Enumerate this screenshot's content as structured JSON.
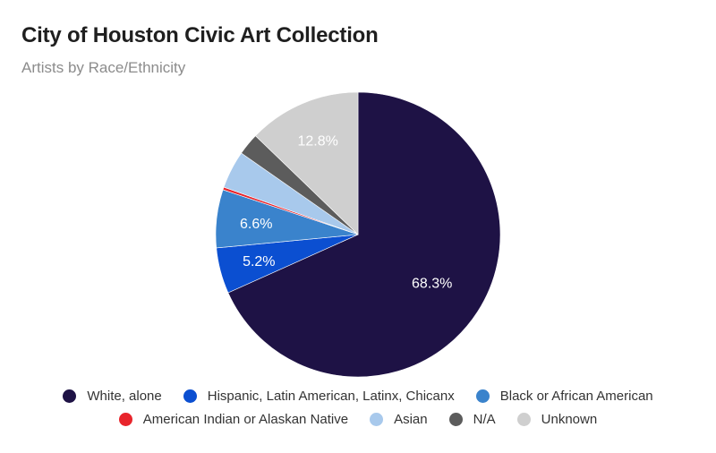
{
  "chart_data": {
    "type": "pie",
    "title": "City of Houston Civic Art Collection",
    "subtitle": "Artists by Race/Ethnicity",
    "slices": [
      {
        "label": "White, alone",
        "value": 68.3,
        "color": "#1e1245",
        "show_label": "68.3%"
      },
      {
        "label": "Hispanic, Latin American, Latinx, Chicanx",
        "value": 5.2,
        "color": "#0b4fd1",
        "show_label": "5.2%"
      },
      {
        "label": "Black or African American",
        "value": 6.6,
        "color": "#3a83cc",
        "show_label": "6.6%"
      },
      {
        "label": "American Indian or Alaskan Native",
        "value": 0.3,
        "color": "#e8242b",
        "show_label": ""
      },
      {
        "label": "Asian",
        "value": 4.3,
        "color": "#a8c9ec",
        "show_label": ""
      },
      {
        "label": "N/A",
        "value": 2.5,
        "color": "#5c5c5c",
        "show_label": ""
      },
      {
        "label": "Unknown",
        "value": 12.8,
        "color": "#cfcfcf",
        "show_label": "12.8%"
      }
    ],
    "legend_position": "bottom"
  },
  "legend": {
    "row1": [
      {
        "label": "White, alone",
        "color": "#1e1245"
      },
      {
        "label": "Hispanic, Latin American, Latinx, Chicanx",
        "color": "#0b4fd1"
      },
      {
        "label": "Black or African American",
        "color": "#3a83cc"
      }
    ],
    "row2": [
      {
        "label": "American Indian or Alaskan Native",
        "color": "#e8242b"
      },
      {
        "label": "Asian",
        "color": "#a8c9ec"
      },
      {
        "label": "N/A",
        "color": "#5c5c5c"
      },
      {
        "label": "Unknown",
        "color": "#cfcfcf"
      }
    ]
  }
}
